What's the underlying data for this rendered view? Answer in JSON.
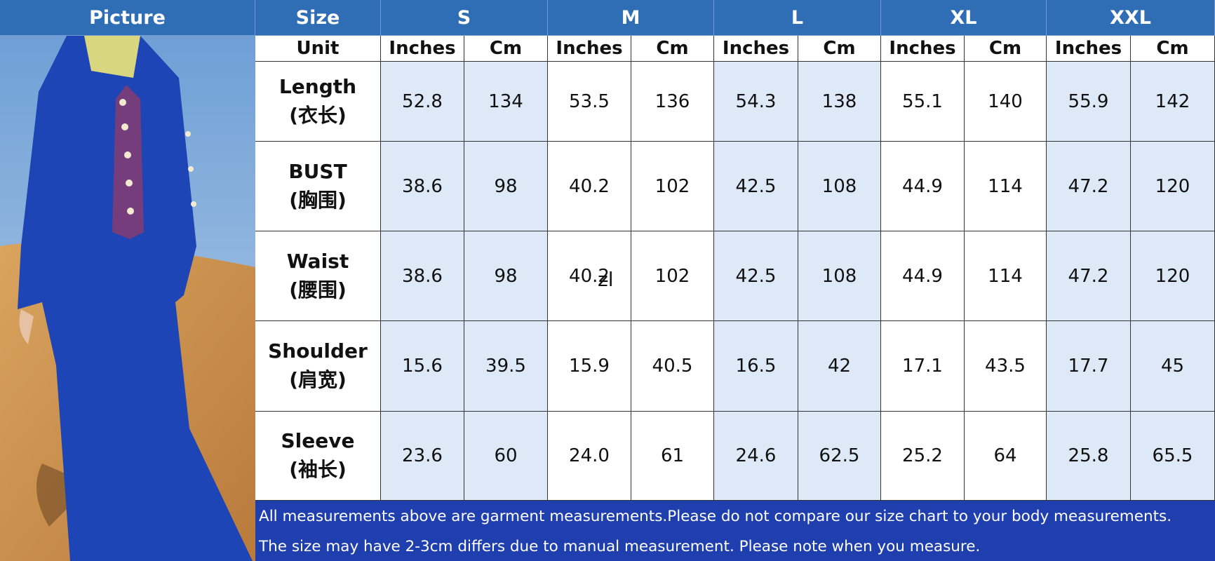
{
  "header": {
    "picture_label": "Picture",
    "size_label": "Size",
    "sizes": [
      "S",
      "M",
      "L",
      "XL",
      "XXL"
    ]
  },
  "unit_row": {
    "label": "Unit",
    "units": [
      "Inches",
      "Cm",
      "Inches",
      "Cm",
      "Inches",
      "Cm",
      "Inches",
      "Cm",
      "Inches",
      "Cm"
    ]
  },
  "rows": [
    {
      "label": "Length",
      "label_cn": "(衣长)",
      "values": [
        "52.8",
        "134",
        "53.5",
        "136",
        "54.3",
        "138",
        "55.1",
        "140",
        "55.9",
        "142"
      ]
    },
    {
      "label": "BUST",
      "label_cn": "(胸围)",
      "values": [
        "38.6",
        "98",
        "40.2",
        "102",
        "42.5",
        "108",
        "44.9",
        "114",
        "47.2",
        "120"
      ]
    },
    {
      "label": "Waist",
      "label_cn": "(腰围)",
      "values": [
        "38.6",
        "98",
        "40.2",
        "102",
        "42.5",
        "108",
        "44.9",
        "114",
        "47.2",
        "120"
      ]
    },
    {
      "label": "Shoulder",
      "label_cn": "(肩宽)",
      "values": [
        "15.6",
        "39.5",
        "15.9",
        "40.5",
        "16.5",
        "42",
        "17.1",
        "43.5",
        "17.7",
        "45"
      ]
    },
    {
      "label": "Sleeve",
      "label_cn": "(袖长)",
      "values": [
        "23.6",
        "60",
        "24.0",
        "61",
        "24.6",
        "62.5",
        "25.2",
        "64",
        "25.8",
        "65.5"
      ]
    }
  ],
  "overlay_text": "zl",
  "footer": [
    "All measurements above are garment measurements.Please do not compare our size chart to your body measurements.",
    "The size may have 2-3cm differs due to manual measurement. Please note when you measure."
  ]
}
